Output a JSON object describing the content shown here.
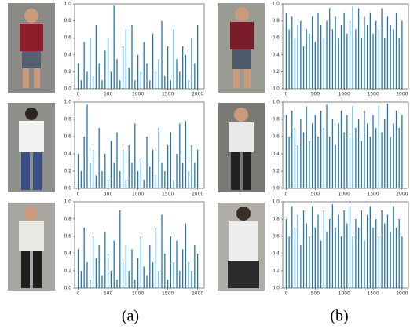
{
  "chart_data": [
    {
      "type": "bar",
      "color": "#1f77b4",
      "xlim": [
        -60,
        2110
      ],
      "ylim": [
        0,
        1.0
      ],
      "xticks": [
        0,
        500,
        1000,
        1500,
        2000
      ],
      "yticks": [
        {
          "value": 0,
          "label": "0.0"
        },
        {
          "value": 0.2,
          "label": "0.2"
        },
        {
          "value": 0.4,
          "label": "0.4"
        },
        {
          "value": 0.6,
          "label": "0.6"
        },
        {
          "value": 0.8,
          "label": "0.8"
        },
        {
          "value": 1.0,
          "label": "1.0"
        }
      ],
      "x": [
        0,
        50,
        100,
        150,
        200,
        250,
        300,
        350,
        400,
        450,
        500,
        550,
        600,
        650,
        700,
        750,
        800,
        850,
        900,
        950,
        1000,
        1050,
        1100,
        1150,
        1200,
        1250,
        1300,
        1350,
        1400,
        1450,
        1500,
        1550,
        1600,
        1650,
        1700,
        1750,
        1800,
        1850,
        1900,
        1950,
        2000
      ],
      "values": [
        0.3,
        0.1,
        0.55,
        0.2,
        0.6,
        0.15,
        0.75,
        0.3,
        0.1,
        0.45,
        0.6,
        0.2,
        0.98,
        0.35,
        0.1,
        0.5,
        0.7,
        0.25,
        0.75,
        0.1,
        0.4,
        0.2,
        0.55,
        0.3,
        0.1,
        0.65,
        0.2,
        0.35,
        0.8,
        0.15,
        0.5,
        0.1,
        0.7,
        0.35,
        0.2,
        0.5,
        0.4,
        0.1,
        0.6,
        0.3,
        0.75
      ]
    },
    {
      "type": "bar",
      "color": "#1f77b4",
      "xlim": [
        -60,
        2110
      ],
      "ylim": [
        0,
        1.0
      ],
      "xticks": [
        0,
        500,
        1000,
        1500,
        2000
      ],
      "yticks": [
        {
          "value": 0,
          "label": "0.0"
        },
        {
          "value": 0.2,
          "label": "0.2"
        },
        {
          "value": 0.4,
          "label": "0.4"
        },
        {
          "value": 0.6,
          "label": "0.6"
        },
        {
          "value": 0.8,
          "label": "0.8"
        },
        {
          "value": 1.0,
          "label": "1.0"
        }
      ],
      "x": [
        0,
        50,
        100,
        150,
        200,
        250,
        300,
        350,
        400,
        450,
        500,
        550,
        600,
        650,
        700,
        750,
        800,
        850,
        900,
        950,
        1000,
        1050,
        1100,
        1150,
        1200,
        1250,
        1300,
        1350,
        1400,
        1450,
        1500,
        1550,
        1600,
        1650,
        1700,
        1750,
        1800,
        1850,
        1900,
        1950,
        2000
      ],
      "values": [
        0.9,
        0.7,
        0.85,
        0.6,
        0.75,
        0.8,
        0.5,
        0.7,
        0.65,
        0.85,
        0.55,
        0.9,
        0.75,
        0.6,
        0.8,
        0.95,
        0.7,
        0.85,
        0.6,
        0.75,
        0.9,
        0.65,
        0.8,
        0.97,
        0.7,
        0.95,
        0.6,
        0.85,
        0.75,
        0.9,
        0.65,
        0.8,
        0.7,
        0.95,
        0.6,
        0.85,
        0.75,
        0.7,
        0.9,
        0.6,
        0.8
      ]
    },
    {
      "type": "bar",
      "color": "#1f77b4",
      "xlim": [
        -60,
        2110
      ],
      "ylim": [
        0,
        1.0
      ],
      "xticks": [
        0,
        500,
        1000,
        1500,
        2000
      ],
      "yticks": [
        {
          "value": 0,
          "label": "0.0"
        },
        {
          "value": 0.2,
          "label": "0.2"
        },
        {
          "value": 0.4,
          "label": "0.4"
        },
        {
          "value": 0.6,
          "label": "0.6"
        },
        {
          "value": 0.8,
          "label": "0.8"
        },
        {
          "value": 1.0,
          "label": "1.0"
        }
      ],
      "x": [
        0,
        50,
        100,
        150,
        200,
        250,
        300,
        350,
        400,
        450,
        500,
        550,
        600,
        650,
        700,
        750,
        800,
        850,
        900,
        950,
        1000,
        1050,
        1100,
        1150,
        1200,
        1250,
        1300,
        1350,
        1400,
        1450,
        1500,
        1550,
        1600,
        1650,
        1700,
        1750,
        1800,
        1850,
        1900,
        1950,
        2000
      ],
      "values": [
        0.4,
        0.2,
        0.6,
        0.97,
        0.3,
        0.45,
        0.15,
        0.7,
        0.2,
        0.4,
        0.1,
        0.55,
        0.3,
        0.65,
        0.2,
        0.45,
        0.1,
        0.5,
        0.3,
        0.75,
        0.2,
        0.35,
        0.1,
        0.6,
        0.25,
        0.45,
        0.15,
        0.7,
        0.3,
        0.2,
        0.5,
        0.65,
        0.1,
        0.4,
        0.75,
        0.3,
        0.78,
        0.2,
        0.5,
        0.3,
        0.45
      ]
    },
    {
      "type": "bar",
      "color": "#1f77b4",
      "xlim": [
        -60,
        2110
      ],
      "ylim": [
        0,
        1.0
      ],
      "xticks": [
        0,
        500,
        1000,
        1500,
        2000
      ],
      "yticks": [
        {
          "value": 0,
          "label": "0.0"
        },
        {
          "value": 0.2,
          "label": "0.2"
        },
        {
          "value": 0.4,
          "label": "0.4"
        },
        {
          "value": 0.6,
          "label": "0.6"
        },
        {
          "value": 0.8,
          "label": "0.8"
        },
        {
          "value": 1.0,
          "label": "1.0"
        }
      ],
      "x": [
        0,
        50,
        100,
        150,
        200,
        250,
        300,
        350,
        400,
        450,
        500,
        550,
        600,
        650,
        700,
        750,
        800,
        850,
        900,
        950,
        1000,
        1050,
        1100,
        1150,
        1200,
        1250,
        1300,
        1350,
        1400,
        1450,
        1500,
        1550,
        1600,
        1650,
        1700,
        1750,
        1800,
        1850,
        1900,
        1950,
        2000
      ],
      "values": [
        0.85,
        0.6,
        0.9,
        0.7,
        0.5,
        0.8,
        0.65,
        0.95,
        0.55,
        0.75,
        0.85,
        0.6,
        0.9,
        0.7,
        0.97,
        0.6,
        0.8,
        0.5,
        0.75,
        0.9,
        0.65,
        0.85,
        0.6,
        0.95,
        0.7,
        0.8,
        0.55,
        0.9,
        0.75,
        0.6,
        0.85,
        0.7,
        0.95,
        0.65,
        0.8,
        0.98,
        0.6,
        0.75,
        0.9,
        0.7,
        0.85
      ]
    },
    {
      "type": "bar",
      "color": "#1f77b4",
      "xlim": [
        -60,
        2110
      ],
      "ylim": [
        0,
        1.0
      ],
      "xticks": [
        0,
        500,
        1000,
        1500,
        2000
      ],
      "yticks": [
        {
          "value": 0,
          "label": "0.0"
        },
        {
          "value": 0.2,
          "label": "0.2"
        },
        {
          "value": 0.4,
          "label": "0.4"
        },
        {
          "value": 0.6,
          "label": "0.6"
        },
        {
          "value": 0.8,
          "label": "0.8"
        },
        {
          "value": 1.0,
          "label": "1.0"
        }
      ],
      "x": [
        0,
        50,
        100,
        150,
        200,
        250,
        300,
        350,
        400,
        450,
        500,
        550,
        600,
        650,
        700,
        750,
        800,
        850,
        900,
        950,
        1000,
        1050,
        1100,
        1150,
        1200,
        1250,
        1300,
        1350,
        1400,
        1450,
        1500,
        1550,
        1600,
        1650,
        1700,
        1750,
        1800,
        1850,
        1900,
        1950,
        2000
      ],
      "values": [
        0.45,
        0.2,
        0.7,
        0.3,
        0.1,
        0.6,
        0.35,
        0.5,
        0.15,
        0.65,
        0.4,
        0.2,
        0.55,
        0.1,
        0.9,
        0.3,
        0.5,
        0.2,
        0.45,
        0.1,
        0.35,
        0.6,
        0.25,
        0.15,
        0.5,
        0.3,
        0.7,
        0.2,
        0.85,
        0.4,
        0.1,
        0.6,
        0.3,
        0.55,
        0.2,
        0.45,
        0.75,
        0.3,
        0.2,
        0.5,
        0.4
      ]
    },
    {
      "type": "bar",
      "color": "#1f77b4",
      "xlim": [
        -60,
        2110
      ],
      "ylim": [
        0,
        1.0
      ],
      "xticks": [
        0,
        500,
        1000,
        1500,
        2000
      ],
      "yticks": [
        {
          "value": 0,
          "label": "0.0"
        },
        {
          "value": 0.2,
          "label": "0.2"
        },
        {
          "value": 0.4,
          "label": "0.4"
        },
        {
          "value": 0.6,
          "label": "0.6"
        },
        {
          "value": 0.8,
          "label": "0.8"
        },
        {
          "value": 1.0,
          "label": "1.0"
        }
      ],
      "x": [
        0,
        50,
        100,
        150,
        200,
        250,
        300,
        350,
        400,
        450,
        500,
        550,
        600,
        650,
        700,
        750,
        800,
        850,
        900,
        950,
        1000,
        1050,
        1100,
        1150,
        1200,
        1250,
        1300,
        1350,
        1400,
        1450,
        1500,
        1550,
        1600,
        1650,
        1700,
        1750,
        1800,
        1850,
        1900,
        1950,
        2000
      ],
      "values": [
        0.8,
        0.6,
        0.95,
        0.7,
        0.85,
        0.5,
        0.9,
        0.75,
        0.6,
        0.95,
        0.7,
        0.85,
        0.55,
        0.9,
        0.65,
        0.8,
        0.97,
        0.7,
        0.85,
        0.6,
        0.9,
        0.75,
        0.95,
        0.6,
        0.8,
        0.7,
        0.9,
        0.55,
        0.85,
        0.95,
        0.7,
        0.8,
        0.6,
        0.9,
        0.75,
        0.85,
        0.65,
        0.95,
        0.7,
        0.8,
        0.6
      ]
    }
  ],
  "captions": [
    "(a)",
    "(b)"
  ]
}
